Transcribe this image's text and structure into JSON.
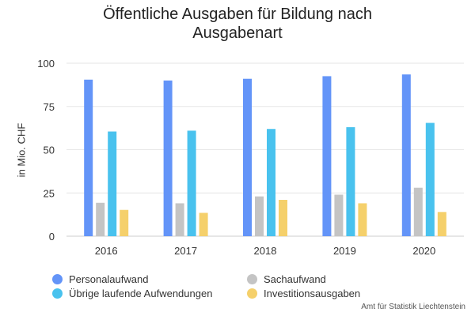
{
  "chart_data": {
    "type": "bar",
    "title_lines": [
      "Öffentliche Ausgaben für Bildung nach",
      "Ausgabenart"
    ],
    "ylabel": "in Mio. CHF",
    "xlabel": "",
    "categories": [
      "2016",
      "2017",
      "2018",
      "2019",
      "2020"
    ],
    "ylim": [
      0,
      100
    ],
    "yticks": [
      0,
      25,
      50,
      75,
      100
    ],
    "grid": true,
    "legend_position": "bottom",
    "series": [
      {
        "name": "Personalaufwand",
        "color": "#6394f8",
        "values": [
          90.5,
          90,
          91,
          92.5,
          93.5
        ]
      },
      {
        "name": "Sachaufwand",
        "color": "#c4c4c4",
        "values": [
          19.3,
          19,
          23,
          24,
          28
        ]
      },
      {
        "name": "Übrige laufende Aufwendungen",
        "color": "#49c2ee",
        "values": [
          60.5,
          61,
          62,
          63,
          65.5
        ]
      },
      {
        "name": "Investitionsausgaben",
        "color": "#f5d06b",
        "values": [
          15.2,
          13.5,
          21,
          19,
          14
        ]
      }
    ],
    "credits": "Amt für Statistik Liechtenstein"
  }
}
